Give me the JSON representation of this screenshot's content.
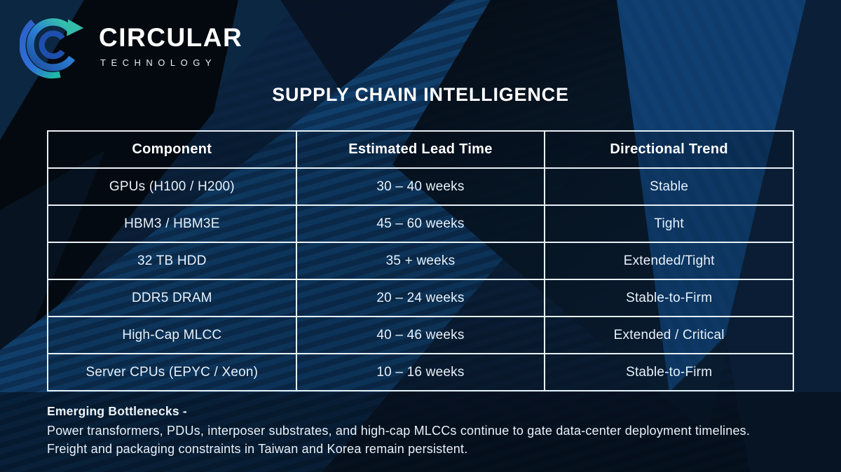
{
  "brand": {
    "name": "CIRCULAR",
    "tagline": "TECHNOLOGY"
  },
  "title": "SUPPLY CHAIN INTELLIGENCE",
  "table": {
    "headers": [
      "Component",
      "Estimated Lead Time",
      "Directional Trend"
    ],
    "rows": [
      [
        "GPUs (H100 / H200)",
        "30 – 40 weeks",
        "Stable"
      ],
      [
        "HBM3 / HBM3E",
        "45 – 60 weeks",
        "Tight"
      ],
      [
        "32 TB HDD",
        "35 + weeks",
        "Extended/Tight"
      ],
      [
        "DDR5 DRAM",
        "20 – 24 weeks",
        "Stable-to-Firm"
      ],
      [
        "High-Cap MLCC",
        "40 – 46 weeks",
        "Extended / Critical"
      ],
      [
        "Server CPUs (EPYC / Xeon)",
        "10 – 16 weeks",
        "Stable-to-Firm"
      ]
    ]
  },
  "footer": {
    "heading": "Emerging Bottlenecks -",
    "lines": [
      "Power transformers, PDUs, interposer substrates, and high-cap MLCCs continue to gate data-center deployment timelines.",
      "Freight and packaging constraints in Taiwan and Korea remain persistent."
    ]
  },
  "colors": {
    "background_navy": "#0a1e36",
    "band_blue": "#10406f",
    "table_border": "#e6f1f7",
    "logo_teal": "#2fbfae",
    "logo_blue": "#2a6fd4",
    "text_light": "#e7f1fa"
  }
}
